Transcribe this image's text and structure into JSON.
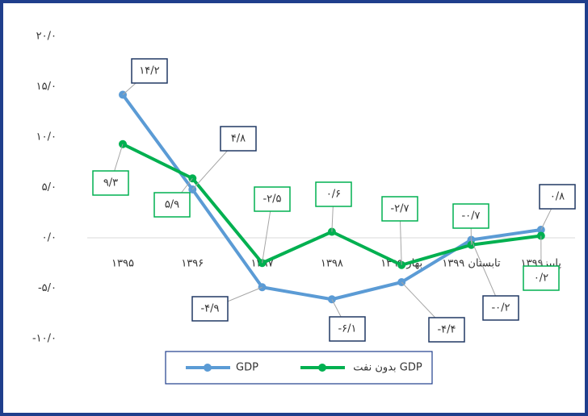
{
  "chart_data": {
    "type": "line",
    "categories": [
      "۱۳۹۵",
      "۱۳۹۶",
      "۱۳۹۷",
      "۱۳۹۸",
      "بهار ۱۳۹۹",
      "تابستان ۱۳۹۹",
      "پاییز۱۳۹۹"
    ],
    "series": [
      {
        "name": "GDP",
        "color": "#5b9bd5",
        "values": [
          14.2,
          4.8,
          -4.9,
          -6.1,
          -4.4,
          -0.2,
          0.8
        ],
        "value_labels": [
          "۱۴/۲",
          "۴/۸",
          "-۴/۹",
          "-۶/۱",
          "-۴/۴",
          "-۰/۲",
          "۰/۸"
        ]
      },
      {
        "name": "بدون نفت GDP",
        "color": "#00b050",
        "values": [
          9.3,
          5.9,
          -2.5,
          0.6,
          -2.7,
          -0.7,
          0.2
        ],
        "value_labels": [
          "۹/۳",
          "۵/۹",
          "-۲/۵",
          "۰/۶",
          "-۲/۷",
          "-۰/۷",
          "۰/۲"
        ]
      }
    ],
    "ylim": [
      -10,
      20
    ],
    "yticks": [
      {
        "value": -10,
        "label": "-۱۰/۰"
      },
      {
        "value": -5,
        "label": "-۵/۰"
      },
      {
        "value": 0,
        "label": "۰/۰"
      },
      {
        "value": 5,
        "label": "۵/۰"
      },
      {
        "value": 10,
        "label": "۱۰/۰"
      },
      {
        "value": 15,
        "label": "۱۵/۰"
      },
      {
        "value": 20,
        "label": "۲۰/۰"
      }
    ],
    "grid": false
  }
}
